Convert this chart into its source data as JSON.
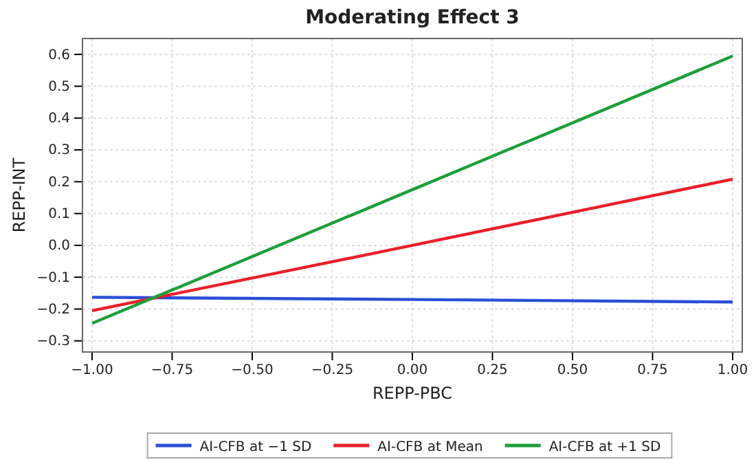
{
  "chart_data": {
    "type": "line",
    "title": "Moderating Effect 3",
    "xlabel": "REPP-PBC",
    "ylabel": "REPP-INT",
    "x": [
      -1,
      0,
      1
    ],
    "series": [
      {
        "name": "AI-CFB at −1 SD",
        "color": "#2a4fd6",
        "values": [
          -0.163,
          -0.17,
          -0.178
        ]
      },
      {
        "name": "AI-CFB at Mean",
        "color": "#e8202a",
        "values": [
          -0.205,
          0.0,
          0.208
        ]
      },
      {
        "name": "AI-CFB at +1 SD",
        "color": "#1e9e3a",
        "values": [
          -0.245,
          0.175,
          0.595
        ]
      }
    ],
    "xlim": [
      -1.03,
      1.03
    ],
    "xticks": [
      {
        "value": -1,
        "label": "−1.00"
      },
      {
        "value": -0.75,
        "label": "−0.75"
      },
      {
        "value": -0.5,
        "label": "−0.50"
      },
      {
        "value": -0.25,
        "label": "−0.25"
      },
      {
        "value": 0,
        "label": "0.00"
      },
      {
        "value": 0.25,
        "label": "0.25"
      },
      {
        "value": 0.5,
        "label": "0.50"
      },
      {
        "value": 0.75,
        "label": "0.75"
      },
      {
        "value": 1,
        "label": "1.00"
      }
    ],
    "ylim": [
      -0.335,
      0.65
    ],
    "yticks": [
      {
        "value": -0.3,
        "label": "−0.3"
      },
      {
        "value": -0.2,
        "label": "−0.2"
      },
      {
        "value": -0.1,
        "label": "−0.1"
      },
      {
        "value": 0,
        "label": "0.0"
      },
      0.1,
      0.2,
      0.3,
      0.4,
      0.5,
      0.6
    ],
    "grid": true,
    "legend": "bottom",
    "line_style": "solid",
    "marker": "none"
  }
}
